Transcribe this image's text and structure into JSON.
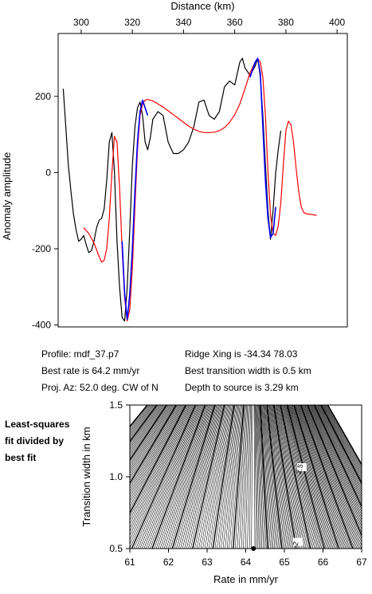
{
  "info": {
    "profile": "Profile: mdf_37.p7",
    "best_rate": "Best rate is 64.2 mm/yr",
    "proj_az": "Proj. Az: 52.0 deg. CW of N",
    "ridge_xing": "Ridge Xing is -34.34 78.03",
    "best_width": "Best transition width is 0.5 km",
    "depth": "Depth to source is   3.29 km"
  },
  "note": {
    "line1": "Least-squares",
    "line2": "fit divided by",
    "line3": "best fit"
  },
  "colors": {
    "observed": "#000000",
    "model": "#ff0000",
    "fit_window": "#0000ff",
    "contour": "#000000"
  },
  "chart_data": [
    {
      "type": "line",
      "title": "",
      "xlabel": "Distance (km)",
      "ylabel": "Anomaly amplitude",
      "x_axis_position": "top",
      "xlim": [
        291,
        404
      ],
      "ylim": [
        -405,
        365
      ],
      "xticks": [
        300,
        320,
        340,
        360,
        380,
        400
      ],
      "yticks": [
        -400,
        -200,
        0,
        200
      ],
      "grid": false,
      "series": [
        {
          "name": "observed",
          "color": "#000000",
          "x": [
            293,
            294,
            295,
            296,
            297,
            298,
            299,
            300,
            301,
            302,
            303,
            304,
            305,
            306,
            307,
            308,
            309,
            310,
            311,
            312,
            313,
            314,
            315,
            316,
            317,
            318,
            319,
            320,
            321,
            322,
            323,
            324,
            325,
            326,
            327,
            328,
            329,
            330,
            332,
            334,
            336,
            338,
            340,
            342,
            344,
            346,
            348,
            350,
            352,
            354,
            356,
            358,
            360,
            362,
            363,
            364,
            366,
            368,
            369,
            370,
            371,
            372,
            373,
            374,
            375,
            376,
            377,
            378
          ],
          "y": [
            220,
            120,
            20,
            -50,
            -110,
            -150,
            -180,
            -175,
            -165,
            -190,
            -210,
            -205,
            -180,
            -145,
            -125,
            -120,
            -95,
            -20,
            80,
            105,
            0,
            -180,
            -300,
            -380,
            -390,
            -300,
            -150,
            20,
            120,
            170,
            185,
            150,
            80,
            60,
            90,
            140,
            150,
            160,
            150,
            80,
            50,
            50,
            60,
            80,
            120,
            185,
            190,
            150,
            140,
            160,
            225,
            240,
            230,
            290,
            300,
            275,
            255,
            280,
            300,
            250,
            150,
            20,
            -100,
            -175,
            -100,
            0,
            60,
            110
          ]
        },
        {
          "name": "model",
          "color": "#ff0000",
          "x": [
            301,
            303,
            305,
            307,
            308,
            309,
            310,
            311,
            312,
            313,
            314,
            315,
            316,
            317,
            318,
            319,
            320,
            321,
            322,
            323,
            324,
            325,
            326,
            328,
            330,
            332,
            334,
            336,
            338,
            340,
            342,
            344,
            346,
            348,
            350,
            352,
            354,
            356,
            358,
            360,
            362,
            364,
            366,
            368,
            369,
            370,
            371,
            372,
            373,
            374,
            375,
            376,
            377,
            378,
            379,
            380,
            381,
            382,
            383,
            384,
            385,
            386,
            387,
            388,
            390,
            392
          ],
          "y": [
            -145,
            -160,
            -185,
            -220,
            -235,
            -230,
            -200,
            -120,
            0,
            95,
            80,
            -40,
            -200,
            -330,
            -390,
            -360,
            -250,
            -90,
            60,
            150,
            180,
            190,
            192,
            188,
            180,
            172,
            162,
            152,
            142,
            132,
            122,
            114,
            108,
            105,
            105,
            106,
            110,
            118,
            132,
            152,
            180,
            220,
            262,
            290,
            298,
            290,
            250,
            150,
            0,
            -110,
            -160,
            -165,
            -140,
            -80,
            20,
            110,
            135,
            125,
            80,
            10,
            -50,
            -90,
            -105,
            -108,
            -110,
            -112
          ]
        },
        {
          "name": "fit window",
          "color": "#0000ff",
          "x": [
            316,
            317,
            318,
            319,
            320,
            321,
            322,
            323,
            324,
            325,
            326
          ],
          "y": [
            -180,
            -320,
            -385,
            -320,
            -200,
            -50,
            80,
            160,
            190,
            170,
            150
          ]
        },
        {
          "name": "fit window",
          "color": "#0000ff",
          "x": [
            366,
            367,
            368,
            369,
            370,
            371,
            372,
            373,
            374,
            375,
            376
          ],
          "y": [
            250,
            270,
            290,
            300,
            260,
            120,
            -20,
            -120,
            -170,
            -160,
            -90
          ]
        }
      ]
    },
    {
      "type": "contour",
      "title": "",
      "xlabel": "Rate in mm/yr",
      "ylabel": "Transition width in km",
      "xlim": [
        61,
        67
      ],
      "ylim": [
        0.5,
        1.5
      ],
      "xticks": [
        61,
        62,
        63,
        64,
        65,
        66,
        67
      ],
      "yticks": [
        0.5,
        1.0,
        1.5
      ],
      "grid": false,
      "best_fit_point": [
        64.2,
        0.5
      ],
      "center_x": 64.2,
      "contour_labels": [
        {
          "text": "2.5",
          "x": 65.45,
          "y": 1.05
        },
        {
          "text": "2",
          "x": 65.35,
          "y": 0.53
        }
      ]
    }
  ]
}
